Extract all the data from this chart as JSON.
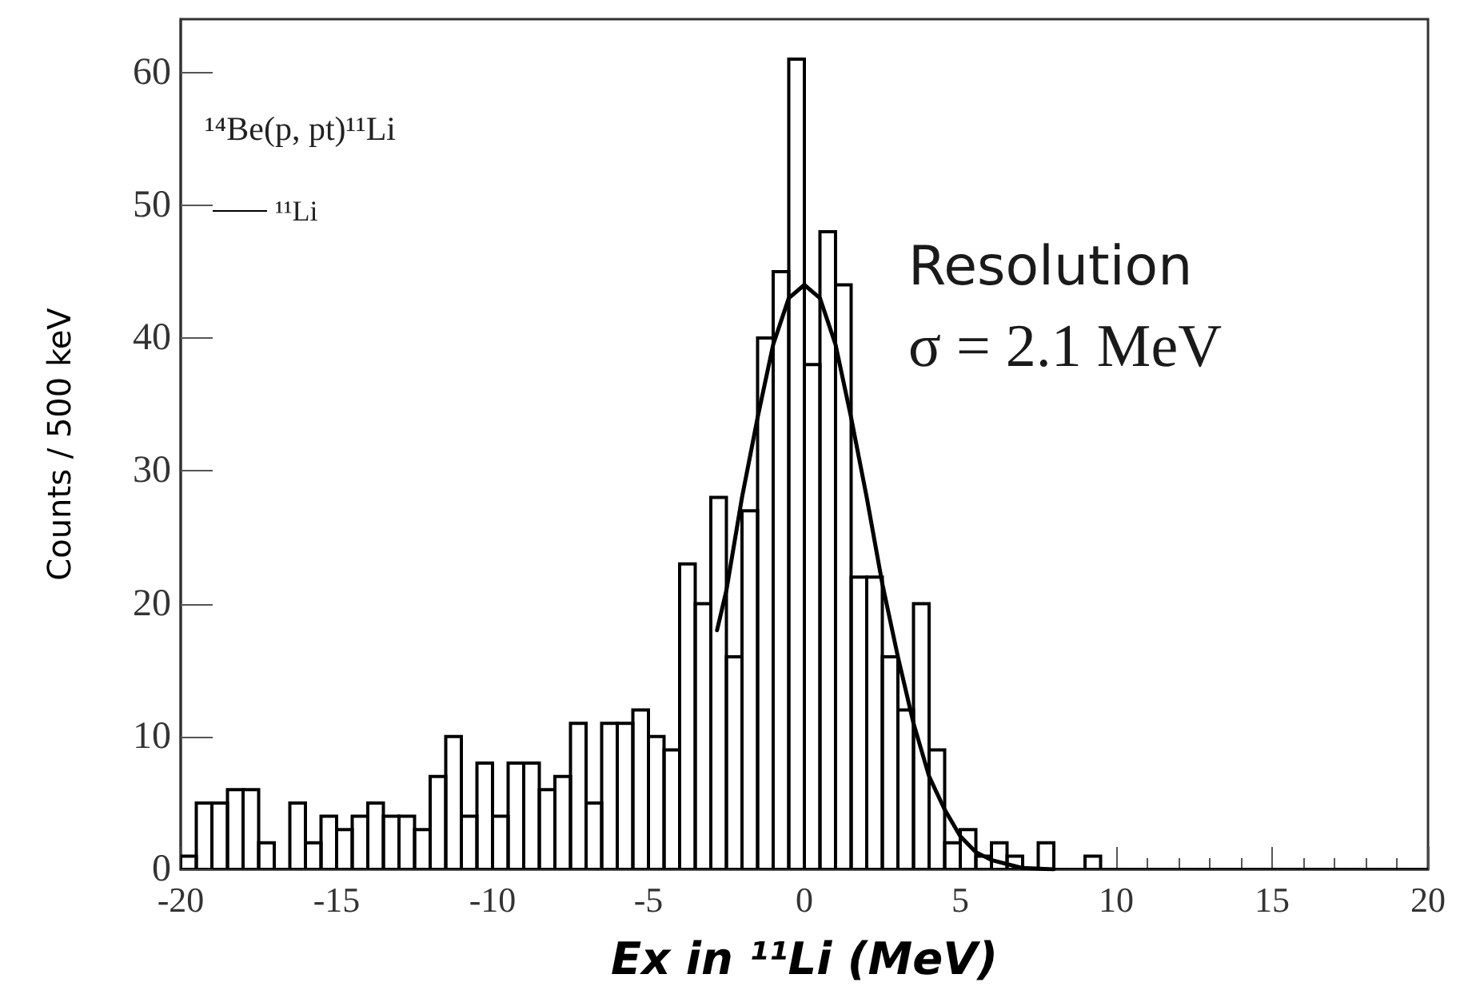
{
  "chart_data": {
    "type": "histogram",
    "xlabel": "Ex in ¹¹Li (MeV)",
    "ylabel": "Counts / 500 keV",
    "legend_title": "¹⁴Be(p, pt)¹¹Li",
    "annotations": [
      "Resolution",
      "σ = 2.1 MeV"
    ],
    "color": "#000000",
    "bins": [
      -20,
      -19.5,
      -19,
      -18.5,
      -18,
      -17.5,
      -17,
      -16.5,
      -16,
      -15.5,
      -15,
      -14.5,
      -14,
      -13.5,
      -13,
      -12.5,
      -12,
      -11.5,
      -11,
      -10.5,
      -10,
      -9.5,
      -9,
      -8.5,
      -8,
      -7.5,
      -7,
      -6.5,
      -6,
      -5.5,
      -5,
      -4.5,
      -4,
      -3.5,
      -3,
      -2.5,
      -2,
      -1.5,
      -1,
      -0.5,
      0,
      0.5,
      1,
      1.5,
      2,
      2.5,
      3,
      3.5,
      4,
      4.5,
      5,
      5.5,
      6,
      6.5,
      7,
      7.5,
      8,
      8.5,
      9,
      9.5,
      10,
      10.5,
      11,
      11.5,
      12,
      12.5,
      13,
      13.5,
      14,
      14.5,
      15,
      15.5,
      16,
      16.5,
      17,
      17.5,
      18,
      18.5,
      19,
      19.5,
      20
    ],
    "values": [
      1,
      5,
      5,
      6,
      6,
      2,
      0,
      5,
      2,
      4,
      3,
      4,
      5,
      4,
      4,
      3,
      7,
      10,
      4,
      8,
      4,
      8,
      8,
      6,
      7,
      11,
      5,
      11,
      11,
      12,
      10,
      9,
      23,
      20,
      28,
      16,
      27,
      40,
      45,
      61,
      38,
      48,
      44,
      22,
      22,
      16,
      12,
      20,
      9,
      2,
      3,
      1,
      2,
      1,
      0,
      2,
      0,
      0,
      1,
      0,
      0,
      0,
      0,
      0,
      0,
      0,
      0,
      0,
      0,
      0,
      0,
      0,
      0,
      0,
      0,
      0,
      0,
      0,
      0,
      0
    ],
    "series": [
      {
        "type": "line",
        "name": "¹¹Li",
        "color": "#000000",
        "x": [
          -2.8,
          -2.5,
          -2,
          -1.5,
          -1,
          -0.5,
          0,
          0.5,
          1,
          1.5,
          2,
          2.5,
          3,
          3.5,
          4,
          4.5,
          5,
          5.5,
          6,
          7,
          8
        ],
        "values": [
          18,
          21,
          28,
          34,
          39.5,
          43,
          44,
          43,
          39.5,
          34,
          28,
          21.5,
          16,
          11,
          7,
          4.5,
          2.5,
          1.3,
          0.7,
          0.1,
          0
        ]
      }
    ],
    "xlim": [
      -20,
      20
    ],
    "xticks": [
      -20,
      -15,
      -10,
      -5,
      0,
      5,
      10,
      15,
      20
    ],
    "ylim": [
      0,
      64
    ],
    "yticks": [
      0,
      10,
      20,
      30,
      40,
      50,
      60
    ],
    "grid": false,
    "legend": "top left",
    "marker": "none",
    "line_style": "solid"
  }
}
